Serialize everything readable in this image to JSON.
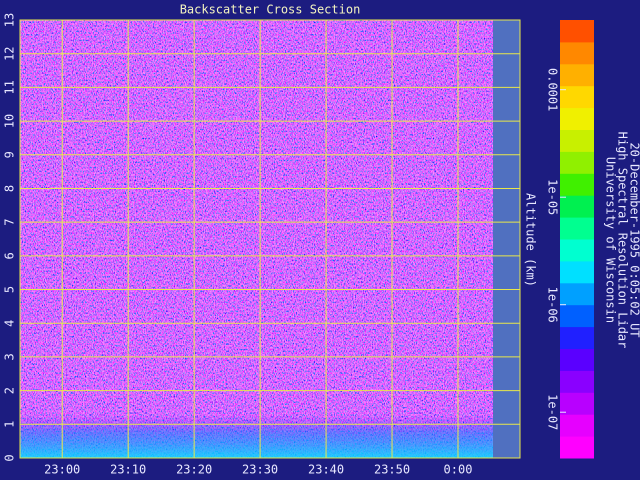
{
  "chart_data": {
    "type": "heatmap",
    "title": "Backscatter Cross Section",
    "ylabel": "Altitude (km)",
    "xlim": [
      1373.6,
      1449.4
    ],
    "xticks": [
      {
        "value": 1380,
        "label": "23:00"
      },
      {
        "value": 1390,
        "label": "23:10"
      },
      {
        "value": 1400,
        "label": "23:20"
      },
      {
        "value": 1410,
        "label": "23:30"
      },
      {
        "value": 1420,
        "label": "23:40"
      },
      {
        "value": 1430,
        "label": "23:50"
      },
      {
        "value": 1440,
        "label": "0:00"
      }
    ],
    "ylim": [
      0,
      13
    ],
    "yticks": [
      0,
      1,
      2,
      3,
      4,
      5,
      6,
      7,
      8,
      9,
      10,
      11,
      12,
      13
    ],
    "grid": true,
    "grid_color": "#e8e84a",
    "colorbar": {
      "scale": "log",
      "lim": [
        3.75e-08,
        0.000445
      ],
      "ticks": [
        {
          "value": 1e-07,
          "label": "1e-07"
        },
        {
          "value": 1e-06,
          "label": "1e-06"
        },
        {
          "value": 1e-05,
          "label": "1e-05"
        },
        0.0001
      ],
      "colors": [
        "#ff00ff",
        "#e600ff",
        "#b800ff",
        "#8a00ff",
        "#5a00ff",
        "#2020ff",
        "#0060ff",
        "#00a0ff",
        "#00e0ff",
        "#00ffd0",
        "#00ff90",
        "#00f050",
        "#40f000",
        "#90f000",
        "#c8f000",
        "#f0f000",
        "#ffd800",
        "#ffb000",
        "#ff8800",
        "#ff5000"
      ]
    },
    "annotations": [
      "University of Wisconsin",
      "High Spectral Resolution Lidar",
      "20-December-1995  0:05:02 UT"
    ]
  }
}
